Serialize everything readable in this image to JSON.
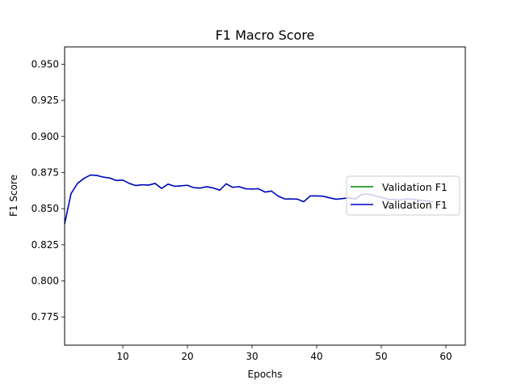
{
  "chart_data": {
    "type": "line",
    "title": "F1 Macro Score",
    "xlabel": "Epochs",
    "ylabel": "F1 Score",
    "xlim": [
      1,
      63
    ],
    "ylim": [
      0.7555,
      0.962
    ],
    "xticks": [
      10,
      20,
      30,
      40,
      50,
      60
    ],
    "yticks": [
      0.775,
      0.8,
      0.825,
      0.85,
      0.875,
      0.9,
      0.925,
      0.95
    ],
    "xtick_labels": [
      "10",
      "20",
      "30",
      "40",
      "50",
      "60"
    ],
    "ytick_labels": [
      "0.775",
      "0.800",
      "0.825",
      "0.850",
      "0.875",
      "0.900",
      "0.925",
      "0.950"
    ],
    "grid": false,
    "legend_position": "center-right",
    "x": [
      1,
      2,
      3,
      4,
      5,
      6,
      7,
      8,
      9,
      10,
      11,
      12,
      13,
      14,
      15,
      16,
      17,
      18,
      19,
      20,
      21,
      22,
      23,
      24,
      25,
      26,
      27,
      28,
      29,
      30,
      31,
      32,
      33,
      34,
      35,
      36,
      37,
      38,
      39,
      40,
      41,
      42,
      43,
      44,
      45,
      46,
      47,
      48,
      49,
      50,
      51,
      52,
      53,
      54,
      55,
      56,
      57,
      58
    ],
    "series": [
      {
        "name": "Validation F1",
        "color": "#008000",
        "values": [
          0.8395,
          0.8605,
          0.8675,
          0.871,
          0.8733,
          0.873,
          0.8718,
          0.8712,
          0.8695,
          0.8698,
          0.8675,
          0.866,
          0.8665,
          0.8663,
          0.8675,
          0.864,
          0.867,
          0.8655,
          0.8658,
          0.8662,
          0.8645,
          0.8643,
          0.8652,
          0.8643,
          0.8628,
          0.8672,
          0.8648,
          0.8652,
          0.8638,
          0.8636,
          0.8638,
          0.8615,
          0.8622,
          0.8588,
          0.8568,
          0.8567,
          0.8566,
          0.8548,
          0.8588,
          0.8588,
          0.8586,
          0.8575,
          0.8565,
          0.857,
          0.8575,
          0.8567,
          0.86,
          0.86,
          0.859,
          0.8578,
          0.8565,
          0.8563,
          0.856,
          0.8567,
          0.8565,
          0.8558,
          0.8555,
          0.8545
        ]
      },
      {
        "name": "Validation F1",
        "color": "#0000cd",
        "values": [
          0.8395,
          0.8605,
          0.8675,
          0.871,
          0.8733,
          0.873,
          0.8718,
          0.8712,
          0.8695,
          0.8698,
          0.8675,
          0.866,
          0.8665,
          0.8663,
          0.8675,
          0.864,
          0.867,
          0.8655,
          0.8658,
          0.8662,
          0.8645,
          0.8643,
          0.8652,
          0.8643,
          0.8628,
          0.8672,
          0.8648,
          0.8652,
          0.8638,
          0.8636,
          0.8638,
          0.8615,
          0.8622,
          0.8588,
          0.8568,
          0.8567,
          0.8566,
          0.8548,
          0.8588,
          0.8588,
          0.8586,
          0.8575,
          0.8565,
          0.857,
          0.8575,
          0.8567,
          0.86,
          0.86,
          0.859,
          0.8578,
          0.8565,
          0.8563,
          0.856,
          0.8567,
          0.8565,
          0.8558,
          0.8555,
          0.8545
        ]
      }
    ]
  }
}
